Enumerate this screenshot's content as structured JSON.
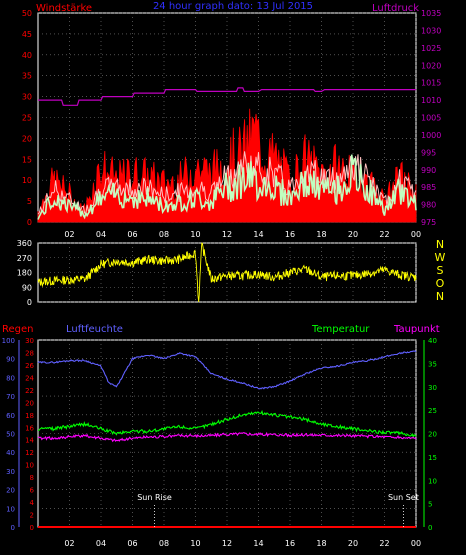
{
  "colors": {
    "background": "#000000",
    "wind": "#ff0000",
    "gust": "#ffbfbf",
    "wind_avg": "#c0ffc0",
    "pressure": "#c000c0",
    "direction": "#ffff00",
    "rain": "#ff0000",
    "humidity": "#6060ff",
    "temperature": "#00ff00",
    "dewpoint": "#ff00ff",
    "axis": "#ffffff",
    "grid": "#808080"
  },
  "chart_data": [
    {
      "type": "line",
      "title": "24 hour graph dato: 13 Jul 2015",
      "left_axis_label": "Windstärke",
      "right_axis_label": "Luftdruck",
      "left_ticks": [
        "0",
        "5",
        "10",
        "15",
        "20",
        "25",
        "30",
        "35",
        "40",
        "45",
        "50"
      ],
      "right_ticks": [
        "975",
        "980",
        "985",
        "990",
        "995",
        "1000",
        "1005",
        "1010",
        "1015",
        "1020",
        "1025",
        "1030",
        "1035"
      ],
      "ylim_left": [
        0,
        50
      ],
      "ylim_right": [
        975,
        1035
      ],
      "x_ticks": [
        "02",
        "04",
        "06",
        "08",
        "10",
        "12",
        "14",
        "16",
        "18",
        "20",
        "22",
        "00"
      ],
      "series": [
        {
          "key": "pressure",
          "axis": "right",
          "hours": [
            0,
            1.5,
            1.6,
            2.5,
            2.6,
            4,
            4.1,
            6,
            6.1,
            8,
            8.1,
            10,
            10.1,
            12.6,
            12.7,
            13,
            13.1,
            14,
            14.2,
            17.5,
            17.6,
            18,
            18.2,
            24
          ],
          "values": [
            1010,
            1010,
            1008.5,
            1008.5,
            1010,
            1010,
            1011,
            1011,
            1012,
            1012,
            1013,
            1013,
            1012.5,
            1012.5,
            1013.5,
            1013.5,
            1012.5,
            1012.5,
            1013,
            1013,
            1012.5,
            1012.5,
            1013,
            1013
          ]
        },
        {
          "key": "wind_max",
          "axis": "left",
          "hours": [
            0,
            1,
            2,
            2.5,
            3,
            3.5,
            4,
            5,
            6,
            7,
            8,
            9,
            10,
            11,
            12,
            13,
            13.8,
            14.5,
            15,
            16,
            17,
            18,
            19,
            20,
            21,
            22,
            23,
            24
          ],
          "values": [
            3,
            12,
            8,
            4,
            4,
            10,
            16,
            12,
            14,
            13,
            11,
            12,
            16,
            14,
            18,
            20,
            26,
            18,
            19,
            12,
            18,
            14,
            16,
            13,
            12,
            6,
            13,
            8
          ]
        },
        {
          "key": "wind_avg",
          "axis": "left",
          "hours": [
            0,
            1,
            2,
            3,
            4,
            5,
            6,
            7,
            8,
            9,
            10,
            11,
            12,
            13,
            14,
            15,
            16,
            17,
            18,
            19,
            20,
            21,
            22,
            23,
            24
          ],
          "values": [
            1,
            6,
            4,
            2,
            6,
            7,
            6,
            6,
            4,
            5,
            6,
            5,
            9,
            11,
            10,
            9,
            6,
            10,
            8,
            8,
            12,
            8,
            3,
            8,
            5
          ]
        },
        {
          "key": "wind_gust",
          "axis": "left",
          "hours": [
            0,
            1,
            2,
            3,
            4,
            5,
            6,
            7,
            8,
            9,
            10,
            11,
            12,
            13,
            14,
            15,
            16,
            17,
            18,
            19,
            20,
            21,
            22,
            23,
            24
          ],
          "values": [
            2,
            9,
            6,
            3,
            9,
            9,
            9,
            9,
            7,
            8,
            9,
            8,
            12,
            15,
            14,
            13,
            9,
            14,
            12,
            11,
            16,
            11,
            5,
            11,
            7
          ]
        }
      ]
    },
    {
      "type": "line",
      "right_axis_label": "N W S O N",
      "left_ticks": [
        "0",
        "90",
        "180",
        "270",
        "360"
      ],
      "ylim": [
        0,
        360
      ],
      "series": [
        {
          "key": "direction",
          "hours": [
            0,
            1,
            2,
            3,
            4,
            5,
            6,
            7,
            8,
            9,
            10,
            10.2,
            10.4,
            11,
            12,
            13,
            14,
            15,
            16,
            17,
            18,
            19,
            20,
            21,
            22,
            23,
            24
          ],
          "values": [
            120,
            130,
            135,
            140,
            230,
            250,
            240,
            260,
            250,
            260,
            300,
            0,
            350,
            140,
            160,
            160,
            170,
            150,
            180,
            200,
            150,
            160,
            160,
            175,
            195,
            165,
            150
          ]
        }
      ]
    },
    {
      "type": "line",
      "labels": {
        "rain": "Regen",
        "humidity": "Luftfeuchte",
        "temperature": "Temperatur",
        "dewpoint": "Taupunkt"
      },
      "humidity_ticks": [
        "0",
        "10",
        "20",
        "30",
        "40",
        "50",
        "60",
        "70",
        "80",
        "90",
        "100"
      ],
      "rain_ticks": [
        "0",
        "2",
        "4",
        "6",
        "8",
        "10",
        "12",
        "14",
        "16",
        "18",
        "20",
        "22",
        "24",
        "26",
        "28",
        "30"
      ],
      "temp_ticks": [
        "0",
        "5",
        "10",
        "15",
        "20",
        "25",
        "30",
        "35",
        "40"
      ],
      "ylim_humidity": [
        0,
        100
      ],
      "ylim_rain": [
        0,
        30
      ],
      "ylim_temp": [
        0,
        40
      ],
      "x_ticks": [
        "02",
        "04",
        "06",
        "08",
        "10",
        "12",
        "14",
        "16",
        "18",
        "20",
        "22",
        "00"
      ],
      "annotations": [
        {
          "text": "Sun Rise",
          "hour": 7.4
        },
        {
          "text": "Sun Set",
          "hour": 23.2
        }
      ],
      "series": [
        {
          "key": "humidity",
          "axis": "humidity",
          "hours": [
            0,
            1,
            2,
            3,
            4,
            4.5,
            5,
            6,
            7,
            8,
            9,
            10,
            11,
            12,
            13,
            14,
            15,
            16,
            17,
            18,
            19,
            20,
            21,
            22,
            23,
            24
          ],
          "values": [
            88,
            88,
            89,
            89,
            86,
            77,
            75,
            90,
            92,
            90,
            93,
            91,
            82,
            79,
            77,
            74,
            75,
            78,
            82,
            85,
            86,
            88,
            89,
            91,
            93,
            94
          ]
        },
        {
          "key": "temperature",
          "axis": "temp",
          "hours": [
            0,
            1,
            2,
            3,
            4,
            5,
            6,
            7,
            8,
            9,
            10,
            11,
            12,
            13,
            14,
            15,
            16,
            17,
            18,
            19,
            20,
            21,
            22,
            23,
            24
          ],
          "values": [
            21,
            21,
            21.5,
            22,
            21,
            20,
            20.5,
            20.5,
            21,
            21.5,
            21,
            22,
            23,
            24,
            24.5,
            24,
            23.5,
            23,
            22,
            21.5,
            21,
            20.5,
            20.3,
            20,
            19.5
          ]
        },
        {
          "key": "dewpoint",
          "axis": "temp",
          "hours": [
            0,
            1,
            2,
            3,
            4,
            5,
            6,
            7,
            8,
            9,
            10,
            11,
            12,
            13,
            14,
            15,
            16,
            17,
            18,
            19,
            20,
            21,
            22,
            23,
            24
          ],
          "values": [
            19,
            19,
            19.3,
            19.5,
            19,
            18.5,
            19,
            19.3,
            19.3,
            19.6,
            19.5,
            19.6,
            19.8,
            20,
            19.8,
            19.8,
            19.6,
            19.7,
            19.7,
            19.6,
            19.5,
            19.4,
            19.3,
            19.1,
            19
          ]
        },
        {
          "key": "rain",
          "axis": "rain",
          "hours": [
            0,
            24
          ],
          "values": [
            0,
            0
          ]
        }
      ]
    }
  ]
}
